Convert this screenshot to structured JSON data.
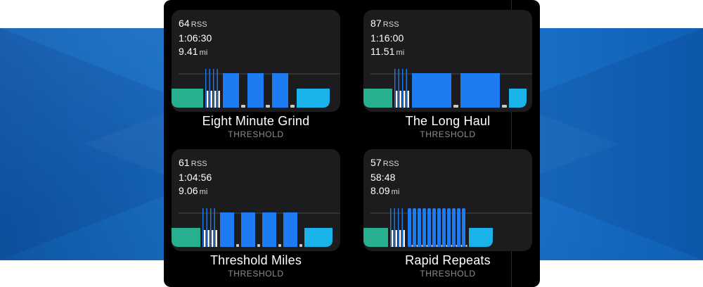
{
  "workouts": [
    {
      "rss": "64",
      "rss_unit": "RSS",
      "duration": "1:06:30",
      "distance": "9.41",
      "distance_unit": "mi",
      "name": "Eight Minute Grind",
      "type": "THRESHOLD",
      "profile": [
        {
          "kind": "warm",
          "w": 45,
          "h": 0.55
        },
        {
          "kind": "gap",
          "w": 3
        },
        {
          "kind": "strides",
          "count": 4
        },
        {
          "kind": "gap",
          "w": 3
        },
        {
          "kind": "work",
          "w": 23,
          "h": 1
        },
        {
          "kind": "gap",
          "w": 3
        },
        {
          "kind": "rest",
          "w": 6
        },
        {
          "kind": "gap",
          "w": 3
        },
        {
          "kind": "work",
          "w": 23,
          "h": 1
        },
        {
          "kind": "gap",
          "w": 3
        },
        {
          "kind": "rest",
          "w": 6
        },
        {
          "kind": "gap",
          "w": 3
        },
        {
          "kind": "work",
          "w": 23,
          "h": 1
        },
        {
          "kind": "gap",
          "w": 3
        },
        {
          "kind": "rest",
          "w": 6
        },
        {
          "kind": "gap",
          "w": 3
        },
        {
          "kind": "cool",
          "w": 47,
          "h": 0.55
        }
      ]
    },
    {
      "rss": "87",
      "rss_unit": "RSS",
      "duration": "1:16:00",
      "distance": "11.51",
      "distance_unit": "mi",
      "name": "The Long Haul",
      "type": "THRESHOLD",
      "profile": [
        {
          "kind": "warm",
          "w": 41,
          "h": 0.55
        },
        {
          "kind": "gap",
          "w": 3
        },
        {
          "kind": "strides",
          "count": 4
        },
        {
          "kind": "gap",
          "w": 3
        },
        {
          "kind": "work",
          "w": 56,
          "h": 1
        },
        {
          "kind": "gap",
          "w": 3
        },
        {
          "kind": "rest",
          "w": 7
        },
        {
          "kind": "gap",
          "w": 3
        },
        {
          "kind": "work",
          "w": 56,
          "h": 1
        },
        {
          "kind": "gap",
          "w": 3
        },
        {
          "kind": "rest",
          "w": 7
        },
        {
          "kind": "gap",
          "w": 3
        },
        {
          "kind": "cool",
          "w": 25,
          "h": 0.55
        }
      ]
    },
    {
      "rss": "61",
      "rss_unit": "RSS",
      "duration": "1:04:56",
      "distance": "9.06",
      "distance_unit": "mi",
      "name": "Threshold Miles",
      "type": "THRESHOLD",
      "profile": [
        {
          "kind": "warm",
          "w": 41,
          "h": 0.55
        },
        {
          "kind": "gap",
          "w": 3
        },
        {
          "kind": "strides",
          "count": 4
        },
        {
          "kind": "gap",
          "w": 3
        },
        {
          "kind": "work",
          "w": 20,
          "h": 1
        },
        {
          "kind": "gap",
          "w": 3
        },
        {
          "kind": "rest",
          "w": 4
        },
        {
          "kind": "gap",
          "w": 3
        },
        {
          "kind": "work",
          "w": 20,
          "h": 1
        },
        {
          "kind": "gap",
          "w": 3
        },
        {
          "kind": "rest",
          "w": 4
        },
        {
          "kind": "gap",
          "w": 3
        },
        {
          "kind": "work",
          "w": 20,
          "h": 1
        },
        {
          "kind": "gap",
          "w": 3
        },
        {
          "kind": "rest",
          "w": 4
        },
        {
          "kind": "gap",
          "w": 3
        },
        {
          "kind": "work",
          "w": 20,
          "h": 1
        },
        {
          "kind": "gap",
          "w": 3
        },
        {
          "kind": "rest",
          "w": 4
        },
        {
          "kind": "gap",
          "w": 3
        },
        {
          "kind": "cool",
          "w": 40,
          "h": 0.55
        }
      ]
    },
    {
      "rss": "57",
      "rss_unit": "RSS",
      "duration": "58:48",
      "distance": "8.09",
      "distance_unit": "mi",
      "name": "Rapid Repeats",
      "type": "THRESHOLD",
      "profile": [
        {
          "kind": "warm",
          "w": 35,
          "h": 0.55
        },
        {
          "kind": "gap",
          "w": 3
        },
        {
          "kind": "strides",
          "count": 4
        },
        {
          "kind": "gap",
          "w": 3
        },
        {
          "kind": "repeats",
          "count": 12,
          "w": 5,
          "rest": 3,
          "gap": 2
        },
        {
          "kind": "gap",
          "w": 3
        },
        {
          "kind": "cool",
          "w": 34,
          "h": 0.55
        }
      ]
    }
  ],
  "colors": {
    "warm": "#26b08f",
    "cool": "#19b3ea",
    "work": "#1e7cf2",
    "stride": "#ffffff",
    "rest": "#c9c9c9",
    "line": "#48484a"
  }
}
